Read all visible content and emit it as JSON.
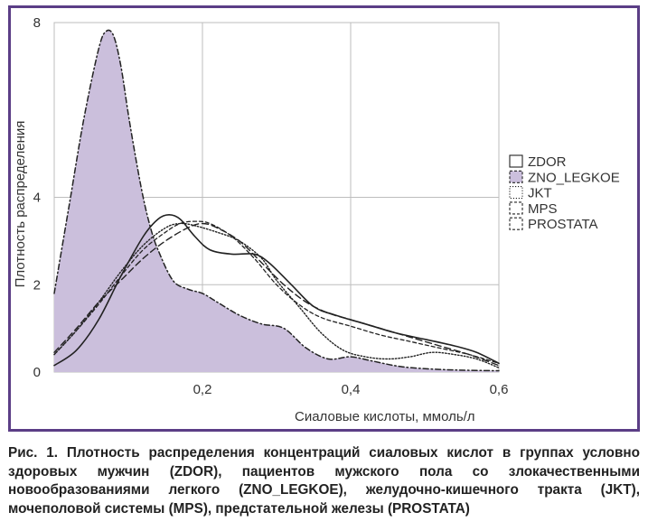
{
  "colors": {
    "frame": "#5b3e86",
    "fill_zno": "#cbbfdc",
    "grid": "#bdbdbd",
    "text": "#333333",
    "lines": "#222222"
  },
  "caption": "Рис. 1. Плотность распределения концентраций сиаловых кислот в группах условно здоровых мужчин (ZDOR), пациентов мужского пола со злокачественными новообразованиями легкого (ZNO_LEGKOE), желудочно-кишечного тракта (JKT), мочеполовой системы (MPS), предстательной железы (PROSTATA)",
  "chart_data": {
    "type": "area",
    "title": "",
    "xlabel": "Сиаловые кислоты, ммоль/л",
    "ylabel": "Плотность распределения",
    "xlim": [
      0,
      0.6
    ],
    "ylim": [
      0,
      8
    ],
    "x_ticks": [
      0.2,
      0.4,
      0.6
    ],
    "x_tick_labels": [
      "0,2",
      "0,4",
      "0,6"
    ],
    "y_ticks": [
      0,
      2,
      4,
      8
    ],
    "y_tick_labels": [
      "0",
      "2",
      "4",
      "8"
    ],
    "grid": true,
    "legend_position": "right",
    "series": [
      {
        "name": "ZDOR",
        "style": "solid",
        "x": [
          0,
          0.03,
          0.06,
          0.09,
          0.12,
          0.14,
          0.155,
          0.17,
          0.19,
          0.21,
          0.24,
          0.27,
          0.29,
          0.32,
          0.35,
          0.38,
          0.42,
          0.46,
          0.5,
          0.54,
          0.57,
          0.6
        ],
        "y": [
          0.15,
          0.5,
          1.2,
          2.2,
          3.1,
          3.5,
          3.6,
          3.5,
          3.1,
          2.8,
          2.7,
          2.7,
          2.5,
          2.0,
          1.5,
          1.3,
          1.1,
          0.9,
          0.75,
          0.6,
          0.45,
          0.2
        ]
      },
      {
        "name": "ZNO_LEGKOE",
        "style": "dash-dot",
        "filled": true,
        "x": [
          0,
          0.02,
          0.04,
          0.06,
          0.07,
          0.08,
          0.09,
          0.1,
          0.11,
          0.12,
          0.13,
          0.14,
          0.16,
          0.18,
          0.2,
          0.22,
          0.25,
          0.28,
          0.31,
          0.34,
          0.37,
          0.4,
          0.43,
          0.47,
          0.52,
          0.56,
          0.6
        ],
        "y": [
          1.8,
          3.8,
          5.8,
          7.4,
          7.8,
          7.7,
          7.0,
          5.9,
          4.9,
          4.0,
          3.3,
          2.8,
          2.1,
          1.9,
          1.8,
          1.6,
          1.3,
          1.1,
          1.0,
          0.55,
          0.3,
          0.35,
          0.25,
          0.12,
          0.06,
          0.04,
          0.03
        ]
      },
      {
        "name": "JKT",
        "style": "dotted",
        "x": [
          0,
          0.03,
          0.06,
          0.09,
          0.12,
          0.15,
          0.17,
          0.19,
          0.22,
          0.25,
          0.28,
          0.3,
          0.33,
          0.36,
          0.39,
          0.42,
          0.45,
          0.48,
          0.51,
          0.54,
          0.57,
          0.6
        ],
        "y": [
          0.4,
          0.95,
          1.6,
          2.3,
          2.9,
          3.3,
          3.4,
          3.35,
          3.2,
          3.0,
          2.6,
          2.1,
          1.5,
          0.9,
          0.5,
          0.35,
          0.3,
          0.35,
          0.45,
          0.4,
          0.3,
          0.1
        ]
      },
      {
        "name": "MPS",
        "style": "dashed",
        "x": [
          0,
          0.03,
          0.06,
          0.09,
          0.12,
          0.15,
          0.18,
          0.2,
          0.22,
          0.25,
          0.28,
          0.31,
          0.34,
          0.37,
          0.4,
          0.44,
          0.48,
          0.52,
          0.56,
          0.6
        ],
        "y": [
          0.45,
          1.0,
          1.6,
          2.1,
          2.6,
          3.0,
          3.3,
          3.4,
          3.3,
          3.0,
          2.5,
          2.0,
          1.6,
          1.35,
          1.2,
          1.0,
          0.8,
          0.6,
          0.4,
          0.15
        ]
      },
      {
        "name": "PROSTATA",
        "style": "short-dash",
        "x": [
          0,
          0.03,
          0.06,
          0.09,
          0.12,
          0.15,
          0.17,
          0.19,
          0.21,
          0.24,
          0.27,
          0.3,
          0.33,
          0.36,
          0.4,
          0.44,
          0.48,
          0.52,
          0.56,
          0.6
        ],
        "y": [
          0.4,
          0.95,
          1.55,
          2.2,
          2.8,
          3.2,
          3.4,
          3.45,
          3.4,
          3.1,
          2.6,
          2.0,
          1.55,
          1.25,
          1.05,
          0.85,
          0.7,
          0.55,
          0.4,
          0.2
        ]
      }
    ]
  }
}
